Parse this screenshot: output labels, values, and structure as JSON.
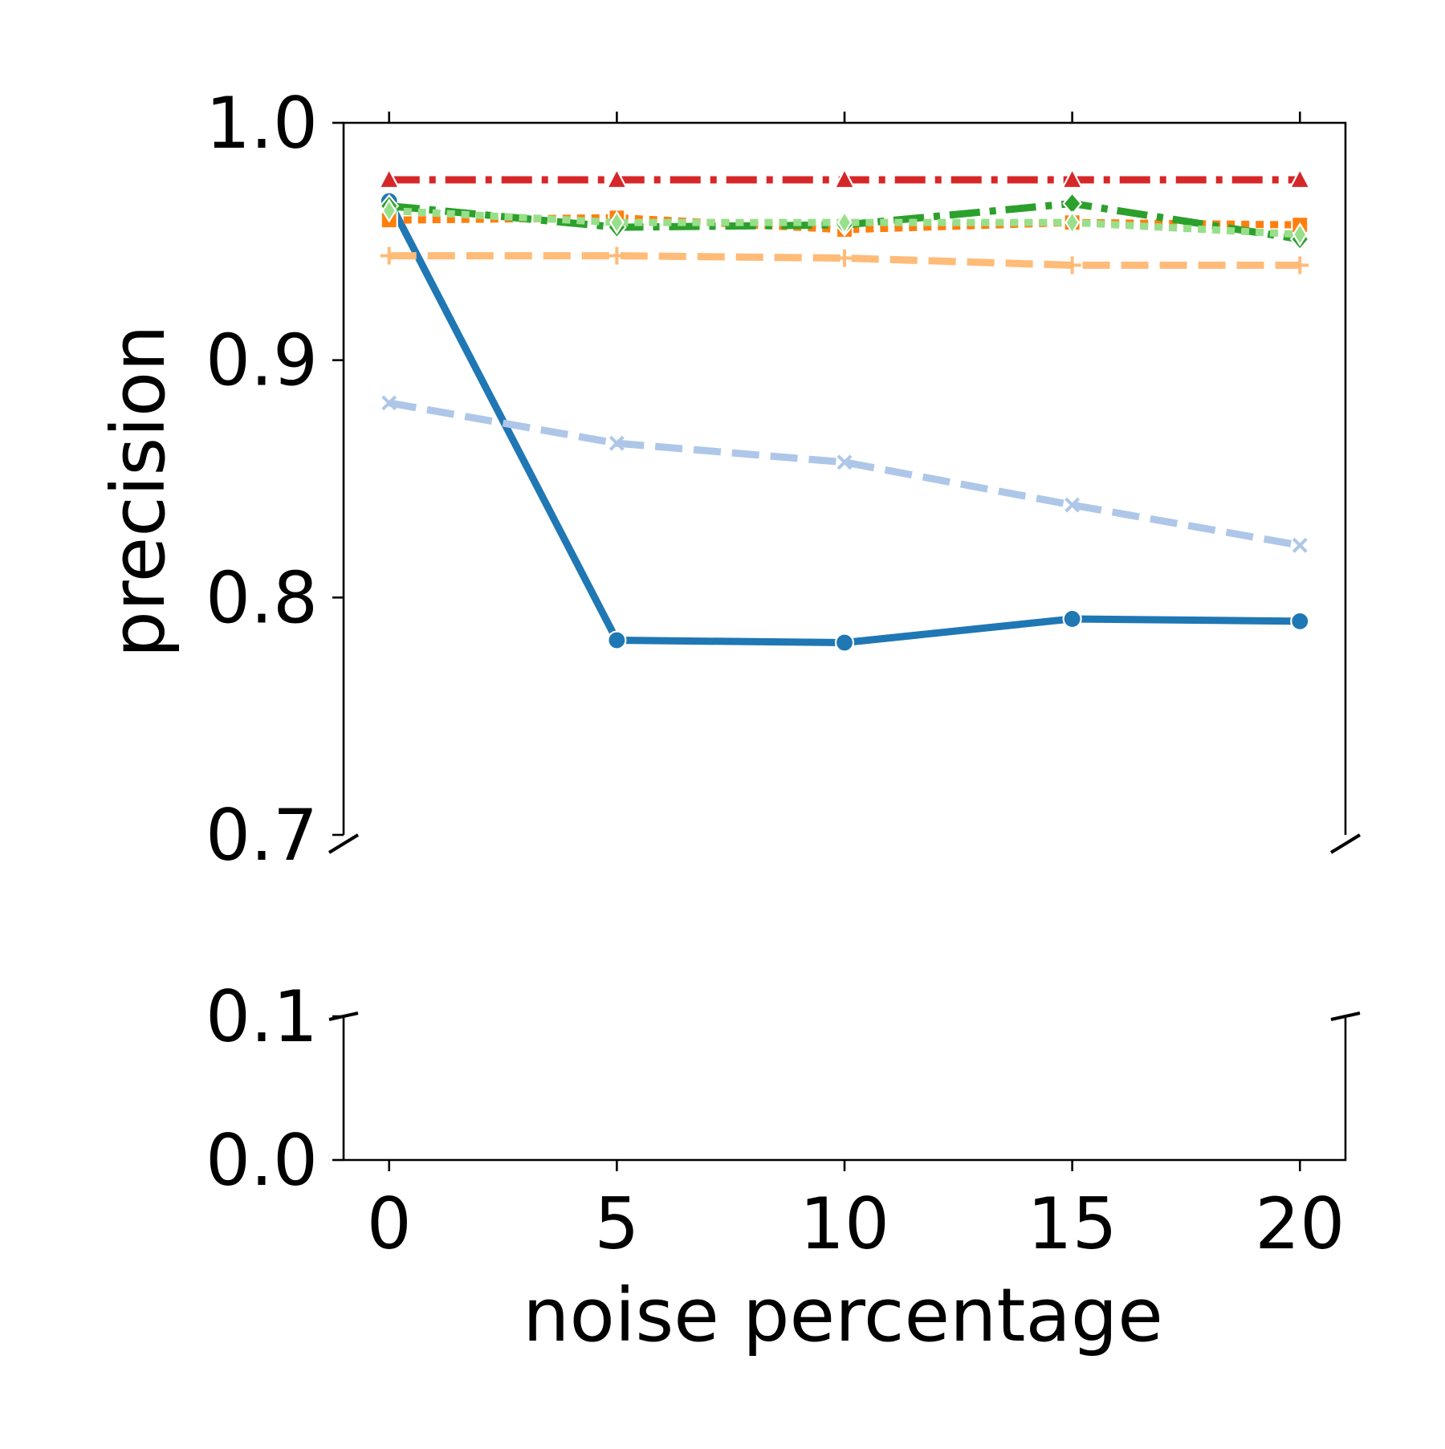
{
  "chart_data": {
    "type": "line",
    "xlabel": "noise percentage",
    "ylabel": "precision",
    "x": [
      0,
      5,
      10,
      15,
      20
    ],
    "xticks": [
      "0",
      "5",
      "10",
      "15",
      "20"
    ],
    "xlim": [
      -1,
      21
    ],
    "broken_y_axis": true,
    "panels": [
      {
        "ylim": [
          0.7,
          1.0
        ],
        "yticks": [
          "1.0",
          "0.9",
          "0.8",
          "0.7"
        ]
      },
      {
        "ylim": [
          0.0,
          0.1
        ],
        "yticks": [
          "0.1",
          "0.0"
        ]
      }
    ],
    "grid": false,
    "legend": "none",
    "series": [
      {
        "values": [
          0.967,
          0.782,
          0.781,
          0.791,
          0.79
        ],
        "color": "#1f77b4",
        "style": "solid",
        "marker": "circle"
      },
      {
        "values": [
          0.882,
          0.865,
          0.857,
          0.839,
          0.822
        ],
        "color": "#aec7e8",
        "style": "dashed",
        "marker": "x"
      },
      {
        "values": [
          0.959,
          0.96,
          0.955,
          0.958,
          0.957
        ],
        "color": "#ff7f0e",
        "style": "dotted",
        "marker": "square"
      },
      {
        "values": [
          0.944,
          0.944,
          0.943,
          0.94,
          0.94
        ],
        "color": "#ffbb78",
        "style": "dashed",
        "marker": "plus"
      },
      {
        "values": [
          0.976,
          0.976,
          0.976,
          0.976,
          0.976
        ],
        "color": "#d62728",
        "style": "dashdot",
        "marker": "triangle"
      },
      {
        "values": [
          0.965,
          0.956,
          0.957,
          0.966,
          0.951
        ],
        "color": "#2ca02c",
        "style": "dashdot",
        "marker": "diamond"
      },
      {
        "values": [
          0.963,
          0.958,
          0.958,
          0.958,
          0.953
        ],
        "color": "#98df8a",
        "style": "dotted",
        "marker": "thin-diamond"
      }
    ]
  }
}
